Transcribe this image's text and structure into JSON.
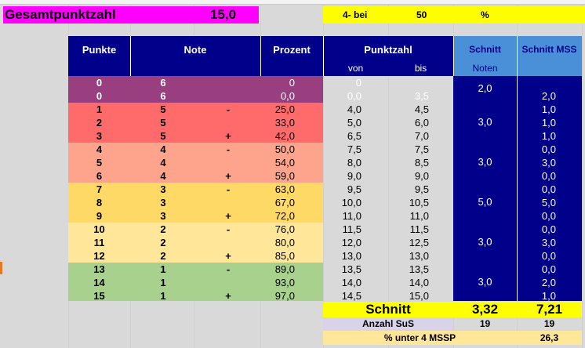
{
  "header": {
    "title": "Gesamtpunktzahl",
    "total": "15,0",
    "threshold_label": "4- bei",
    "threshold_value": "50",
    "threshold_unit": "%"
  },
  "table": {
    "columns": {
      "punkte": "Punkte",
      "note": "Note",
      "prozent": "Prozent",
      "punktzahl": "Punktzahl",
      "von": "von",
      "bis": "bis",
      "schnitt": "Schnitt",
      "noten": "Noten",
      "schnitt_mss": "Schnitt MSS"
    },
    "rows": [
      {
        "punkte": "0",
        "note": "6",
        "mod": "",
        "prozent": "0",
        "von": "0",
        "bis": "",
        "mss": ""
      },
      {
        "punkte": "0",
        "note": "6",
        "mod": "",
        "prozent": "0,0",
        "von": "0,0",
        "bis": "3,5",
        "mss": "2,0"
      },
      {
        "punkte": "1",
        "note": "5",
        "mod": "-",
        "prozent": "25,0",
        "von": "4,0",
        "bis": "4,5",
        "mss": "1,0"
      },
      {
        "punkte": "2",
        "note": "5",
        "mod": "",
        "prozent": "33,0",
        "von": "5,0",
        "bis": "6,0",
        "mss": "1,0"
      },
      {
        "punkte": "3",
        "note": "5",
        "mod": "+",
        "prozent": "42,0",
        "von": "6,5",
        "bis": "7,0",
        "mss": "1,0"
      },
      {
        "punkte": "4",
        "note": "4",
        "mod": "-",
        "prozent": "50,0",
        "von": "7,5",
        "bis": "7,5",
        "mss": "0,0"
      },
      {
        "punkte": "5",
        "note": "4",
        "mod": "",
        "prozent": "54,0",
        "von": "8,0",
        "bis": "8,5",
        "mss": "3,0"
      },
      {
        "punkte": "6",
        "note": "4",
        "mod": "+",
        "prozent": "59,0",
        "von": "9,0",
        "bis": "9,0",
        "mss": "0,0"
      },
      {
        "punkte": "7",
        "note": "3",
        "mod": "-",
        "prozent": "63,0",
        "von": "9,5",
        "bis": "9,5",
        "mss": "0,0"
      },
      {
        "punkte": "8",
        "note": "3",
        "mod": "",
        "prozent": "67,0",
        "von": "10,0",
        "bis": "10,5",
        "mss": "5,0"
      },
      {
        "punkte": "9",
        "note": "3",
        "mod": "+",
        "prozent": "72,0",
        "von": "11,0",
        "bis": "11,0",
        "mss": "0,0"
      },
      {
        "punkte": "10",
        "note": "2",
        "mod": "-",
        "prozent": "76,0",
        "von": "11,5",
        "bis": "11,5",
        "mss": "0,0"
      },
      {
        "punkte": "11",
        "note": "2",
        "mod": "",
        "prozent": "80,0",
        "von": "12,0",
        "bis": "12,5",
        "mss": "3,0"
      },
      {
        "punkte": "12",
        "note": "2",
        "mod": "+",
        "prozent": "85,0",
        "von": "13,0",
        "bis": "13,0",
        "mss": "0,0"
      },
      {
        "punkte": "13",
        "note": "1",
        "mod": "-",
        "prozent": "89,0",
        "von": "13,5",
        "bis": "13,5",
        "mss": "0,0"
      },
      {
        "punkte": "14",
        "note": "1",
        "mod": "",
        "prozent": "93,0",
        "von": "14,0",
        "bis": "14,0",
        "mss": "2,0"
      },
      {
        "punkte": "15",
        "note": "1",
        "mod": "+",
        "prozent": "97,0",
        "von": "14,5",
        "bis": "15,0",
        "mss": "1,0"
      }
    ],
    "schnitt_noten": [
      "2,0",
      "3,0",
      "3,0",
      "5,0",
      "3,0",
      "3,0"
    ],
    "band_colors": [
      "#993f7f",
      "#ff6a6a",
      "#ffa48c",
      "#ffd966",
      "#ffe699",
      "#a9d18e"
    ]
  },
  "summary": {
    "schnitt_label": "Schnitt",
    "schnitt_value": "3,32",
    "schnitt_mss_value": "7,21",
    "anzahl_label": "Anzahl SuS",
    "anzahl_value": "19",
    "anzahl_mss_value": "19",
    "prozent_label": "% unter 4 MSSP",
    "prozent_value": "26,3"
  }
}
